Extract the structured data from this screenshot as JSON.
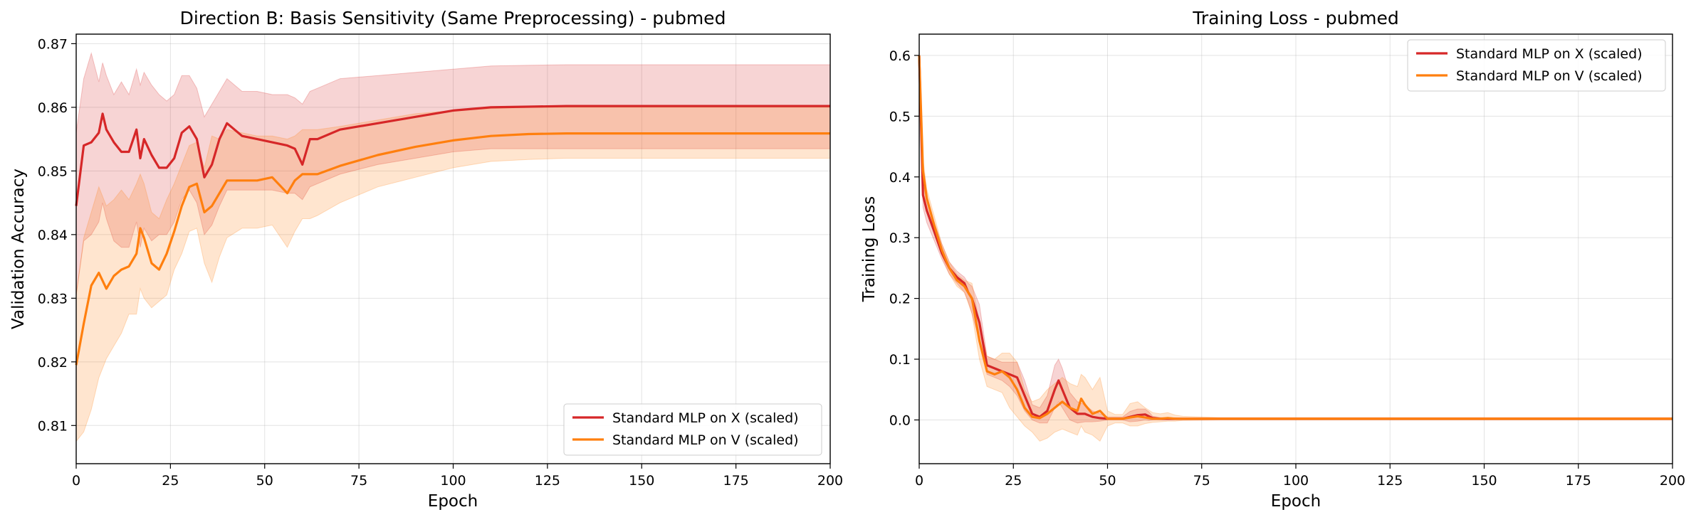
{
  "chart_data": [
    {
      "type": "line",
      "title": "Direction B: Basis Sensitivity (Same Preprocessing) - pubmed",
      "xlabel": "Epoch",
      "ylabel": "Validation Accuracy",
      "xlim": [
        0,
        200
      ],
      "ylim": [
        0.804,
        0.8715
      ],
      "xticks": [
        "0",
        "25",
        "50",
        "75",
        "100",
        "125",
        "150",
        "175",
        "200"
      ],
      "yticks": [
        "0.81",
        "0.82",
        "0.83",
        "0.84",
        "0.85",
        "0.86",
        "0.87"
      ],
      "grid": true,
      "legend_position": "lower-right",
      "series": [
        {
          "name": "Standard MLP on X (scaled)",
          "color": "#d62728",
          "band_alpha": 0.2,
          "x": [
            0,
            2,
            4,
            6,
            7,
            8,
            10,
            12,
            14,
            16,
            17,
            18,
            20,
            22,
            24,
            26,
            28,
            30,
            32,
            34,
            36,
            38,
            40,
            44,
            48,
            52,
            56,
            58,
            60,
            62,
            64,
            70,
            80,
            90,
            100,
            110,
            120,
            130,
            140,
            150,
            160,
            170,
            180,
            190,
            200
          ],
          "y": [
            0.8445,
            0.854,
            0.8545,
            0.856,
            0.859,
            0.8565,
            0.8545,
            0.853,
            0.853,
            0.8565,
            0.852,
            0.855,
            0.8525,
            0.8505,
            0.8505,
            0.852,
            0.856,
            0.857,
            0.855,
            0.849,
            0.851,
            0.855,
            0.8575,
            0.8555,
            0.855,
            0.8545,
            0.854,
            0.8535,
            0.851,
            0.855,
            0.855,
            0.8565,
            0.8575,
            0.8585,
            0.8595,
            0.86,
            0.8601,
            0.8602,
            0.8602,
            0.8602,
            0.8602,
            0.8602,
            0.8602,
            0.8602,
            0.8602
          ],
          "lower": [
            0.8305,
            0.839,
            0.84,
            0.842,
            0.845,
            0.8425,
            0.839,
            0.838,
            0.838,
            0.842,
            0.838,
            0.841,
            0.839,
            0.84,
            0.84,
            0.842,
            0.8455,
            0.847,
            0.845,
            0.84,
            0.8415,
            0.8445,
            0.847,
            0.847,
            0.847,
            0.847,
            0.8465,
            0.8465,
            0.8455,
            0.8475,
            0.848,
            0.8495,
            0.851,
            0.852,
            0.853,
            0.8535,
            0.8535,
            0.8535,
            0.8535,
            0.8535,
            0.8535,
            0.8535,
            0.8535,
            0.8535,
            0.8535
          ],
          "upper": [
            0.856,
            0.8645,
            0.8685,
            0.864,
            0.867,
            0.865,
            0.862,
            0.864,
            0.862,
            0.866,
            0.8635,
            0.8655,
            0.8635,
            0.862,
            0.861,
            0.862,
            0.865,
            0.865,
            0.863,
            0.8585,
            0.8605,
            0.8625,
            0.8645,
            0.8625,
            0.8625,
            0.862,
            0.862,
            0.8615,
            0.8605,
            0.8625,
            0.863,
            0.8645,
            0.865,
            0.8655,
            0.866,
            0.8665,
            0.8666,
            0.8667,
            0.8667,
            0.8667,
            0.8667,
            0.8667,
            0.8667,
            0.8667,
            0.8667
          ]
        },
        {
          "name": "Standard MLP on V (scaled)",
          "color": "#ff7f0e",
          "band_alpha": 0.2,
          "x": [
            0,
            2,
            4,
            6,
            8,
            10,
            12,
            14,
            16,
            17,
            18,
            20,
            22,
            24,
            26,
            28,
            30,
            32,
            34,
            36,
            38,
            40,
            44,
            48,
            52,
            56,
            58,
            60,
            62,
            64,
            70,
            80,
            90,
            100,
            110,
            120,
            130,
            140,
            150,
            160,
            170,
            180,
            190,
            200
          ],
          "y": [
            0.8195,
            0.826,
            0.832,
            0.834,
            0.8315,
            0.8335,
            0.8345,
            0.835,
            0.837,
            0.841,
            0.8395,
            0.8355,
            0.8345,
            0.837,
            0.8405,
            0.8445,
            0.8475,
            0.848,
            0.8435,
            0.8445,
            0.8465,
            0.8485,
            0.8485,
            0.8485,
            0.849,
            0.8465,
            0.8485,
            0.8495,
            0.8495,
            0.8495,
            0.8508,
            0.8525,
            0.8538,
            0.8548,
            0.8555,
            0.8558,
            0.8559,
            0.8559,
            0.8559,
            0.8559,
            0.8559,
            0.8559,
            0.8559,
            0.8559
          ],
          "lower": [
            0.8075,
            0.809,
            0.8125,
            0.8175,
            0.8205,
            0.8225,
            0.8245,
            0.8275,
            0.8275,
            0.8315,
            0.83,
            0.8285,
            0.8295,
            0.8305,
            0.8345,
            0.837,
            0.8405,
            0.841,
            0.8355,
            0.8325,
            0.8365,
            0.8395,
            0.841,
            0.841,
            0.8415,
            0.838,
            0.8405,
            0.8425,
            0.8425,
            0.843,
            0.845,
            0.8475,
            0.849,
            0.8505,
            0.8515,
            0.8518,
            0.852,
            0.852,
            0.852,
            0.852,
            0.852,
            0.852,
            0.852,
            0.852
          ],
          "upper": [
            0.8305,
            0.8395,
            0.8435,
            0.8475,
            0.8445,
            0.8455,
            0.847,
            0.8455,
            0.848,
            0.8495,
            0.848,
            0.8435,
            0.8425,
            0.8455,
            0.848,
            0.851,
            0.854,
            0.8545,
            0.8505,
            0.8555,
            0.855,
            0.8565,
            0.856,
            0.8555,
            0.8555,
            0.855,
            0.8555,
            0.8565,
            0.8565,
            0.8565,
            0.857,
            0.858,
            0.859,
            0.8595,
            0.8598,
            0.86,
            0.86,
            0.86,
            0.86,
            0.86,
            0.86,
            0.86,
            0.86,
            0.86
          ]
        }
      ]
    },
    {
      "type": "line",
      "title": "Training Loss - pubmed",
      "xlabel": "Epoch",
      "ylabel": "Training Loss",
      "xlim": [
        0,
        200
      ],
      "ylim": [
        -0.072,
        0.635
      ],
      "xticks": [
        "0",
        "25",
        "50",
        "75",
        "100",
        "125",
        "150",
        "175",
        "200"
      ],
      "yticks": [
        "0.0",
        "0.1",
        "0.2",
        "0.3",
        "0.4",
        "0.5",
        "0.6"
      ],
      "grid": true,
      "legend_position": "upper-right",
      "series": [
        {
          "name": "Standard MLP on X (scaled)",
          "color": "#d62728",
          "band_alpha": 0.2,
          "x": [
            0,
            1,
            2,
            4,
            6,
            8,
            10,
            12,
            13,
            14,
            16,
            18,
            20,
            22,
            24,
            26,
            28,
            30,
            32,
            34,
            36,
            37,
            38,
            40,
            42,
            44,
            46,
            48,
            50,
            52,
            54,
            56,
            58,
            60,
            61,
            62,
            64,
            66,
            70,
            80,
            100,
            120,
            140,
            160,
            180,
            200
          ],
          "y": [
            0.6,
            0.37,
            0.345,
            0.31,
            0.275,
            0.25,
            0.235,
            0.225,
            0.21,
            0.2,
            0.16,
            0.09,
            0.085,
            0.08,
            0.075,
            0.07,
            0.04,
            0.01,
            0.005,
            0.015,
            0.05,
            0.065,
            0.05,
            0.02,
            0.01,
            0.01,
            0.005,
            0.003,
            0.002,
            0.002,
            0.002,
            0.005,
            0.008,
            0.009,
            0.006,
            0.003,
            0.002,
            0.002,
            0.002,
            0.002,
            0.002,
            0.002,
            0.002,
            0.002,
            0.002,
            0.002
          ],
          "lower": [
            0.59,
            0.35,
            0.325,
            0.295,
            0.265,
            0.24,
            0.225,
            0.21,
            0.195,
            0.175,
            0.13,
            0.075,
            0.07,
            0.065,
            0.055,
            0.04,
            0.015,
            0.0,
            -0.005,
            -0.005,
            0.02,
            0.03,
            0.02,
            0.0,
            -0.005,
            -0.003,
            -0.003,
            -0.002,
            0.0,
            0.0,
            0.0,
            -0.003,
            -0.002,
            0.0,
            -0.001,
            0.0,
            0.0,
            0.0,
            0.0,
            0.0,
            0.0,
            0.0,
            0.0,
            0.0,
            0.0,
            0.0
          ],
          "upper": [
            0.61,
            0.39,
            0.365,
            0.325,
            0.29,
            0.26,
            0.245,
            0.235,
            0.225,
            0.22,
            0.19,
            0.105,
            0.1,
            0.095,
            0.095,
            0.095,
            0.065,
            0.025,
            0.02,
            0.04,
            0.09,
            0.1,
            0.085,
            0.045,
            0.03,
            0.025,
            0.015,
            0.01,
            0.005,
            0.005,
            0.005,
            0.014,
            0.018,
            0.018,
            0.013,
            0.006,
            0.004,
            0.004,
            0.003,
            0.003,
            0.003,
            0.003,
            0.003,
            0.003,
            0.003,
            0.003
          ]
        },
        {
          "name": "Standard MLP on V (scaled)",
          "color": "#ff7f0e",
          "band_alpha": 0.2,
          "x": [
            0,
            1,
            2,
            4,
            6,
            8,
            10,
            12,
            14,
            16,
            18,
            20,
            22,
            24,
            26,
            28,
            30,
            32,
            34,
            36,
            38,
            40,
            42,
            43,
            44,
            46,
            48,
            50,
            52,
            54,
            56,
            58,
            60,
            62,
            64,
            66,
            68,
            70,
            80,
            100,
            120,
            140,
            160,
            180,
            200
          ],
          "y": [
            0.6,
            0.41,
            0.365,
            0.32,
            0.28,
            0.25,
            0.23,
            0.22,
            0.2,
            0.13,
            0.08,
            0.075,
            0.08,
            0.07,
            0.05,
            0.02,
            0.005,
            0.003,
            0.01,
            0.02,
            0.03,
            0.02,
            0.015,
            0.035,
            0.025,
            0.01,
            0.015,
            0.002,
            0.002,
            0.002,
            0.004,
            0.006,
            0.004,
            0.002,
            0.002,
            0.003,
            0.002,
            0.002,
            0.002,
            0.002,
            0.002,
            0.002,
            0.002,
            0.002,
            0.002
          ],
          "lower": [
            0.59,
            0.39,
            0.35,
            0.305,
            0.27,
            0.24,
            0.22,
            0.21,
            0.175,
            0.1,
            0.055,
            0.05,
            0.045,
            0.02,
            0.005,
            -0.01,
            -0.02,
            -0.035,
            -0.03,
            -0.02,
            -0.015,
            -0.02,
            -0.025,
            -0.01,
            -0.02,
            -0.025,
            -0.035,
            -0.01,
            -0.005,
            -0.005,
            -0.01,
            -0.01,
            -0.006,
            -0.004,
            -0.003,
            -0.002,
            -0.002,
            -0.001,
            0.0,
            0.0,
            0.0,
            0.0,
            0.0,
            0.0,
            0.0
          ],
          "upper": [
            0.61,
            0.43,
            0.38,
            0.335,
            0.29,
            0.26,
            0.24,
            0.23,
            0.225,
            0.16,
            0.105,
            0.1,
            0.11,
            0.11,
            0.095,
            0.05,
            0.03,
            0.035,
            0.05,
            0.06,
            0.07,
            0.06,
            0.055,
            0.075,
            0.07,
            0.05,
            0.07,
            0.015,
            0.009,
            0.009,
            0.027,
            0.03,
            0.02,
            0.012,
            0.01,
            0.012,
            0.008,
            0.006,
            0.004,
            0.004,
            0.004,
            0.004,
            0.004,
            0.004,
            0.004
          ]
        }
      ]
    }
  ]
}
